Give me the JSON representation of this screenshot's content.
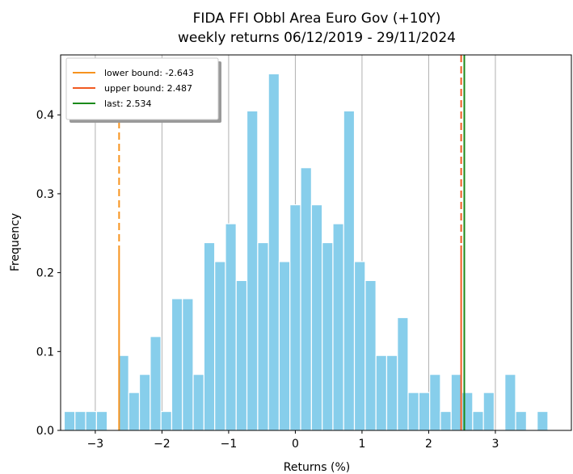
{
  "chart_data": {
    "type": "histogram",
    "title": "FIDA FFI Obbl Area Euro Gov (+10Y)",
    "subtitle": "weekly returns 06/12/2019 - 29/11/2024",
    "x_label": "Returns (%)",
    "y_label": "Frequency",
    "color": "#87ceeb",
    "bins": [
      -3.466,
      -3.305,
      -3.144,
      -2.982,
      -2.821,
      -2.66,
      -2.499,
      -2.338,
      -2.176,
      -2.015,
      -1.854,
      -1.693,
      -1.532,
      -1.37,
      -1.209,
      -1.048,
      -0.887,
      -0.726,
      -0.564,
      -0.403,
      -0.242,
      -0.081,
      0.08,
      0.242,
      0.403,
      0.564,
      0.725,
      0.886,
      1.048,
      1.209,
      1.37,
      1.531,
      1.692,
      1.854,
      2.015,
      2.176,
      2.337,
      2.498,
      2.66,
      2.821,
      2.982,
      3.143,
      3.304,
      3.466,
      3.627,
      3.788
    ],
    "values": [
      0.024,
      0.024,
      0.024,
      0.024,
      0,
      0.095,
      0.048,
      0.071,
      0.119,
      0.024,
      0.167,
      0.167,
      0.071,
      0.238,
      0.214,
      0.262,
      0.19,
      0.405,
      0.238,
      0.452,
      0.214,
      0.286,
      0.333,
      0.286,
      0.238,
      0.262,
      0.405,
      0.214,
      0.19,
      0.095,
      0.095,
      0.143,
      0.048,
      0.048,
      0.071,
      0.024,
      0.071,
      0.048,
      0.024,
      0.048,
      0,
      0.071,
      0.024,
      0,
      0.024
    ],
    "xlim": [
      -3.52,
      4.14
    ],
    "ylim": [
      0,
      0.476
    ],
    "xticks": [
      {
        "value": -3,
        "label": "−3"
      },
      {
        "value": -2,
        "label": "−2"
      },
      {
        "value": -1,
        "label": "−1"
      },
      0,
      1,
      2,
      3
    ],
    "yticks": [
      {
        "value": 0,
        "label": "0.0"
      },
      0.1,
      0.2,
      0.3,
      0.4
    ],
    "grid": "x",
    "legend": "upper left",
    "vlines": [
      {
        "name": "lower bound: -2.643",
        "value": -2.643,
        "color": "#f7931e",
        "style": "split"
      },
      {
        "name": "upper bound: 2.487",
        "value": 2.487,
        "color": "#f15a22",
        "style": "split"
      },
      {
        "name": "last: 2.534",
        "value": 2.534,
        "color": "#1a8a1a",
        "style": "solid"
      }
    ]
  }
}
